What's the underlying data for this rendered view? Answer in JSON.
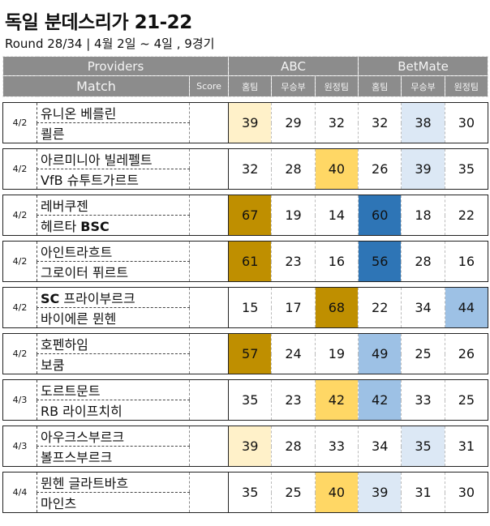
{
  "title": "독일 분데스리가 21-22",
  "subtitle": "Round 28/34 | 4월 2일 ~ 4일 , 9경기",
  "headers": {
    "providers": "Providers",
    "abc": "ABC",
    "betmate": "BetMate",
    "match": "Match",
    "score": "Score",
    "home": "홈팀",
    "draw": "무승부",
    "away": "원정팀"
  },
  "colors": {
    "header_bg": "#8c8c8c",
    "pale_yellow": "#fff1c9",
    "yellow": "#ffd765",
    "gold": "#bf8f00",
    "light_blue": "#dce8f5",
    "mid_blue": "#9dc1e5",
    "dark_blue": "#2e75b6"
  },
  "matches": [
    {
      "date": "4/2",
      "home": "유니온 베를린",
      "away": "쾰른",
      "score": "",
      "abc": [
        39,
        29,
        32
      ],
      "betmate": [
        32,
        38,
        30
      ]
    },
    {
      "date": "4/2",
      "home": "아르미니아 빌레펠트",
      "away": "VfB 슈투트가르트",
      "score": "",
      "abc": [
        32,
        28,
        40
      ],
      "betmate": [
        26,
        39,
        35
      ]
    },
    {
      "date": "4/2",
      "home": "레버쿠젠",
      "away": "헤르타 BSC",
      "score": "",
      "abc": [
        67,
        19,
        14
      ],
      "betmate": [
        60,
        18,
        22
      ]
    },
    {
      "date": "4/2",
      "home": "아인트라흐트",
      "away": "그로이터 퓌르트",
      "score": "",
      "abc": [
        61,
        23,
        16
      ],
      "betmate": [
        56,
        28,
        16
      ]
    },
    {
      "date": "4/2",
      "home": "SC 프라이부르크",
      "away": "바이에른 뮌헨",
      "score": "",
      "abc": [
        15,
        17,
        68
      ],
      "betmate": [
        22,
        34,
        44
      ]
    },
    {
      "date": "4/2",
      "home": "호펜하임",
      "away": "보쿰",
      "score": "",
      "abc": [
        57,
        24,
        19
      ],
      "betmate": [
        49,
        25,
        26
      ]
    },
    {
      "date": "4/3",
      "home": "도르트문트",
      "away": "RB 라이프치히",
      "score": "",
      "abc": [
        35,
        23,
        42
      ],
      "betmate": [
        42,
        33,
        25
      ]
    },
    {
      "date": "4/3",
      "home": "아우크스부르크",
      "away": "볼프스부르크",
      "score": "",
      "abc": [
        39,
        28,
        33
      ],
      "betmate": [
        34,
        35,
        31
      ]
    },
    {
      "date": "4/4",
      "home": "뮌헨 글라트바흐",
      "away": "마인츠",
      "score": "",
      "abc": [
        35,
        25,
        40
      ],
      "betmate": [
        39,
        31,
        30
      ]
    }
  ],
  "highlights": [
    {
      "abc": [
        "pale_yellow",
        "",
        ""
      ],
      "betmate": [
        "",
        "light_blue",
        ""
      ]
    },
    {
      "abc": [
        "",
        "",
        "yellow"
      ],
      "betmate": [
        "",
        "light_blue",
        ""
      ]
    },
    {
      "abc": [
        "gold",
        "",
        ""
      ],
      "betmate": [
        "dark_blue",
        "",
        ""
      ]
    },
    {
      "abc": [
        "gold",
        "",
        ""
      ],
      "betmate": [
        "dark_blue",
        "",
        ""
      ]
    },
    {
      "abc": [
        "",
        "",
        "gold"
      ],
      "betmate": [
        "",
        "",
        "mid_blue"
      ]
    },
    {
      "abc": [
        "gold",
        "",
        ""
      ],
      "betmate": [
        "mid_blue",
        "",
        ""
      ]
    },
    {
      "abc": [
        "",
        "",
        "yellow"
      ],
      "betmate": [
        "mid_blue",
        "",
        ""
      ]
    },
    {
      "abc": [
        "pale_yellow",
        "",
        ""
      ],
      "betmate": [
        "",
        "light_blue",
        ""
      ]
    },
    {
      "abc": [
        "",
        "",
        "yellow"
      ],
      "betmate": [
        "light_blue",
        "",
        ""
      ]
    }
  ]
}
